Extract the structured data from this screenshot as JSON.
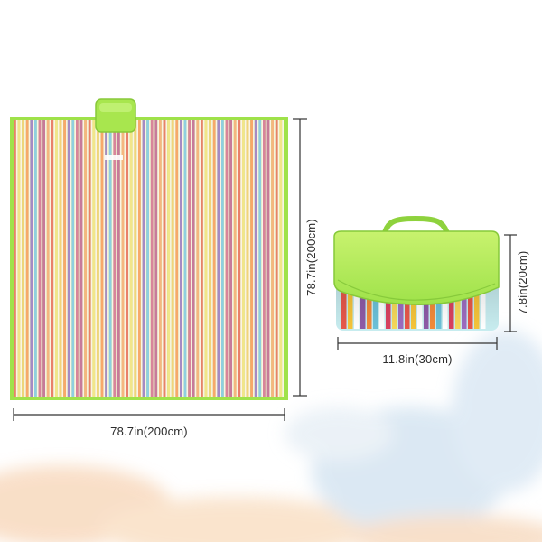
{
  "dimensions": {
    "mat_width": "78.7in(200cm)",
    "mat_length": "78.7in(200cm)",
    "bag_width": "11.8in(30cm)",
    "bag_height": "7.8in(20cm)"
  },
  "colors": {
    "green_trim": "#9fe24a",
    "green_flap": "#b6ec5a",
    "stripe_palette": [
      "#e9806a",
      "#f2d37a",
      "#c77a9a",
      "#f7a86a",
      "#8fcfe0",
      "#f2e58a",
      "#d8849b",
      "#f5b680",
      "#a58ac4"
    ]
  }
}
